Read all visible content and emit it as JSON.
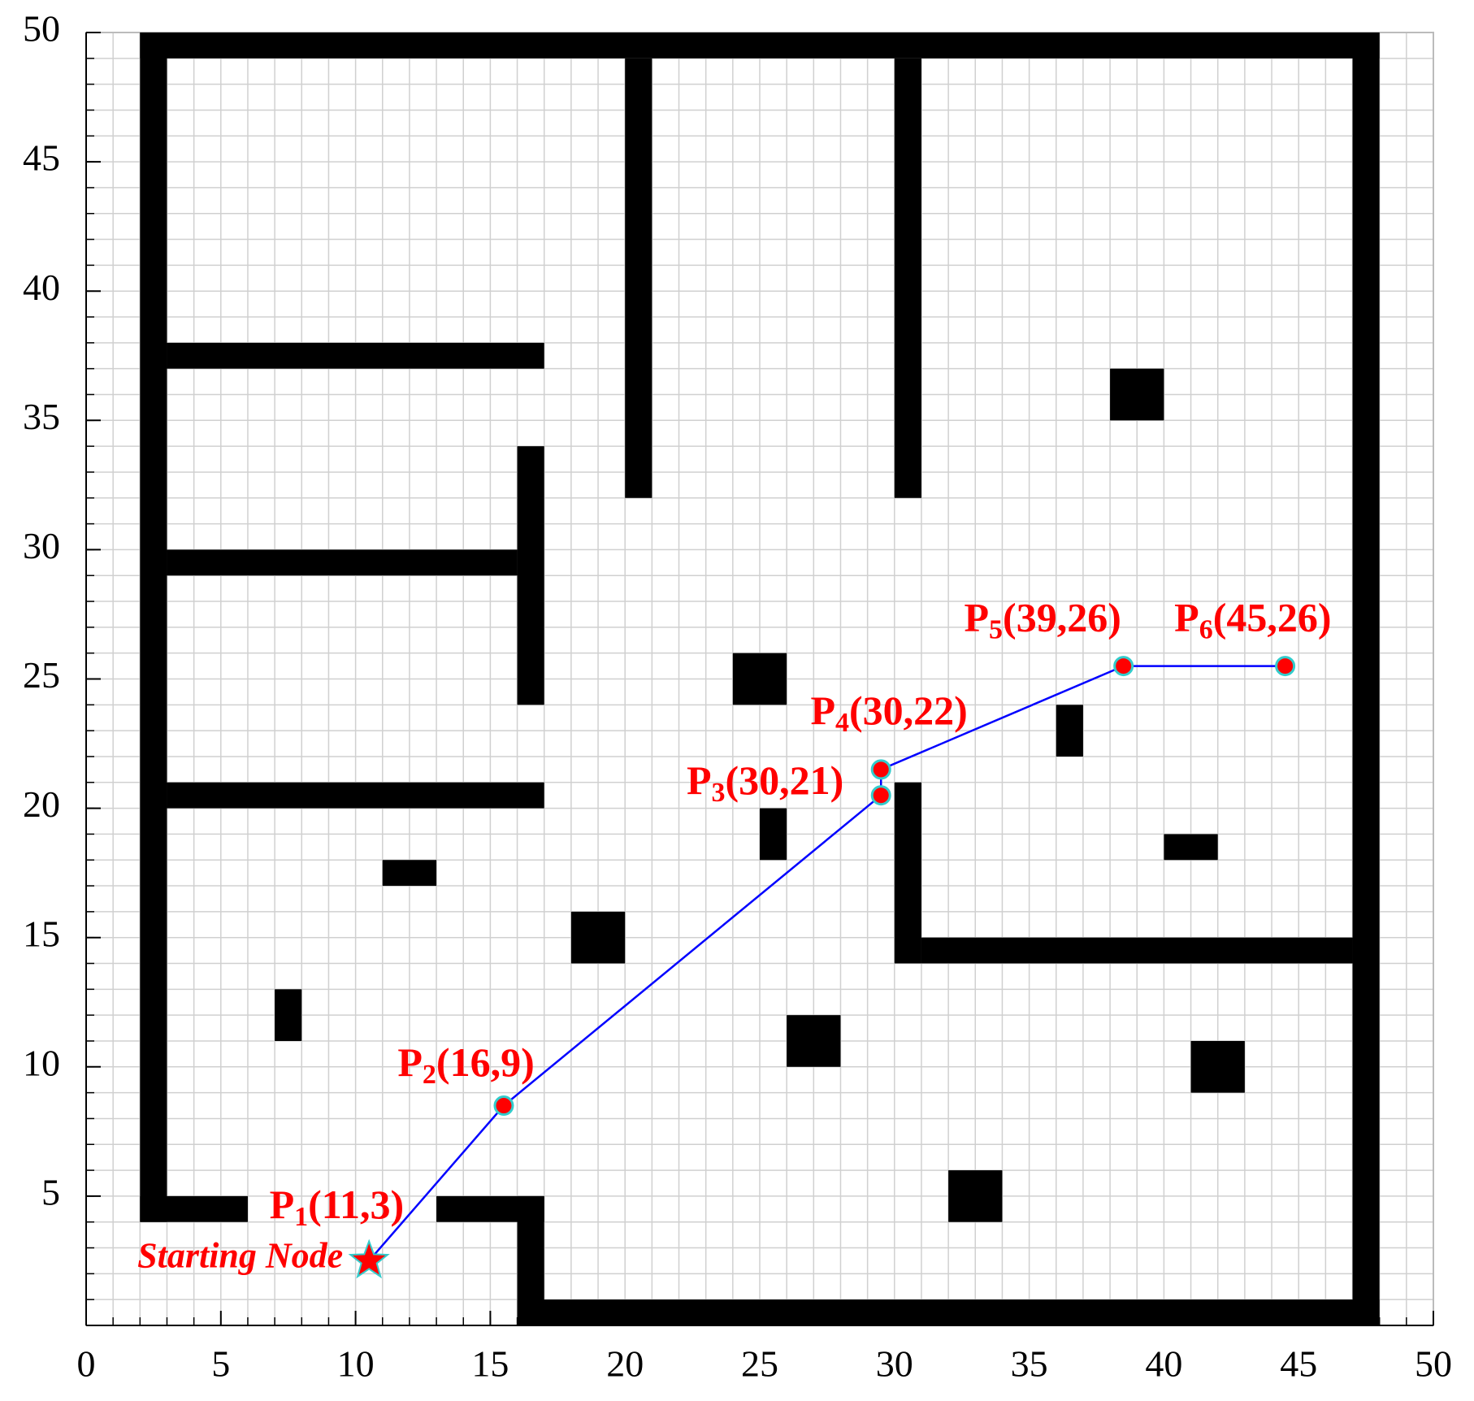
{
  "chart_data": {
    "type": "path-map",
    "xlim": [
      0,
      50
    ],
    "ylim": [
      0,
      50
    ],
    "xticks": [
      0,
      5,
      10,
      15,
      20,
      25,
      30,
      35,
      40,
      45,
      50
    ],
    "yticks": [
      5,
      10,
      15,
      20,
      25,
      30,
      35,
      40,
      45,
      50
    ],
    "grid": true,
    "grid_step": 1,
    "obstacle_color": "#000000",
    "obstacles": [
      [
        2,
        49,
        48,
        50
      ],
      [
        2,
        4,
        3,
        50
      ],
      [
        47,
        0,
        48,
        50
      ],
      [
        16,
        0,
        48,
        1
      ],
      [
        16,
        0,
        17,
        5
      ],
      [
        2,
        4,
        6,
        5
      ],
      [
        13,
        4,
        17,
        5
      ],
      [
        3,
        20,
        17,
        21
      ],
      [
        3,
        29,
        16,
        30
      ],
      [
        16,
        24,
        17,
        34
      ],
      [
        3,
        37,
        17,
        38
      ],
      [
        20,
        32,
        21,
        49
      ],
      [
        30,
        32,
        31,
        49
      ],
      [
        30,
        14,
        31,
        21
      ],
      [
        31,
        14,
        47,
        15
      ],
      [
        38,
        35,
        40,
        37
      ],
      [
        24,
        24,
        26,
        26
      ],
      [
        36,
        22,
        37,
        24
      ],
      [
        25,
        18,
        26,
        20
      ],
      [
        40,
        18,
        42,
        19
      ],
      [
        11,
        17,
        13,
        18
      ],
      [
        18,
        14,
        20,
        16
      ],
      [
        7,
        11,
        8,
        13
      ],
      [
        26,
        10,
        28,
        12
      ],
      [
        41,
        9,
        43,
        11
      ],
      [
        32,
        4,
        34,
        6
      ]
    ],
    "path": {
      "color": "#0000ff",
      "x": [
        10.5,
        15.5,
        29.5,
        29.5,
        38.5,
        44.5
      ],
      "y": [
        2.5,
        8.5,
        20.5,
        21.5,
        25.5,
        25.5
      ]
    },
    "point_color": "#ff0000",
    "point_edge": "#33cccc",
    "points": [
      {
        "name": "P",
        "sub": "1",
        "coord": "(11,3)"
      },
      {
        "name": "P",
        "sub": "2",
        "coord": "(16,9)"
      },
      {
        "name": "P",
        "sub": "3",
        "coord": "(30,21)"
      },
      {
        "name": "P",
        "sub": "4",
        "coord": "(30,22)"
      },
      {
        "name": "P",
        "sub": "5",
        "coord": "(39,26)"
      },
      {
        "name": "P",
        "sub": "6",
        "coord": "(45,26)"
      }
    ],
    "start_label": "Starting Node"
  }
}
